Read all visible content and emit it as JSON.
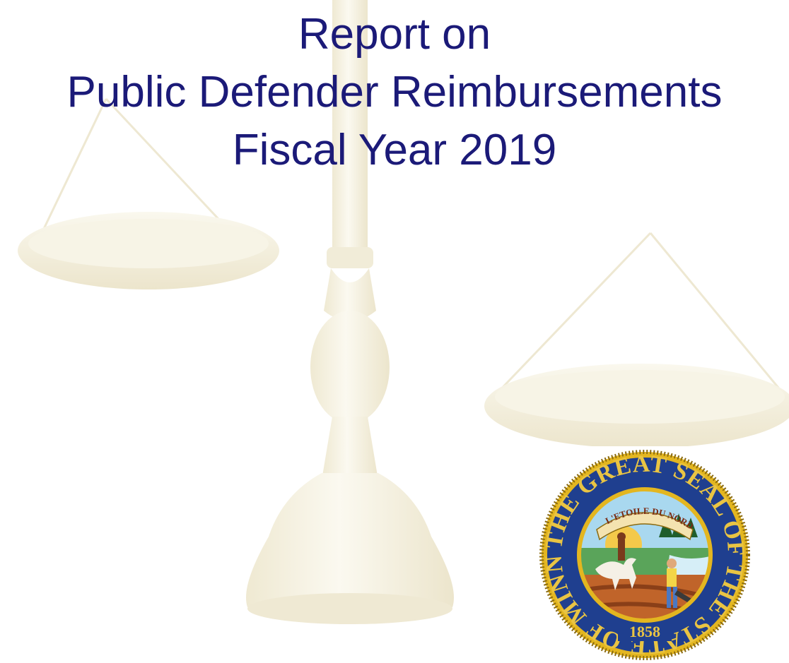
{
  "document": {
    "title_lines": [
      "Report on",
      "Public Defender Reimbursements",
      "Fiscal Year 2019"
    ]
  },
  "colors": {
    "title_text": "#1b1a78",
    "scale_tint": "#f3efdd",
    "seal_blue": "#1f3f8f",
    "seal_gold": "#e3b620"
  },
  "seal": {
    "icon": "state-seal-icon",
    "ring_text": "THE GREAT SEAL OF THE STATE OF MINNESOTA",
    "banner_text": "L'ETOILE DU NORD",
    "year_text": "1858"
  }
}
